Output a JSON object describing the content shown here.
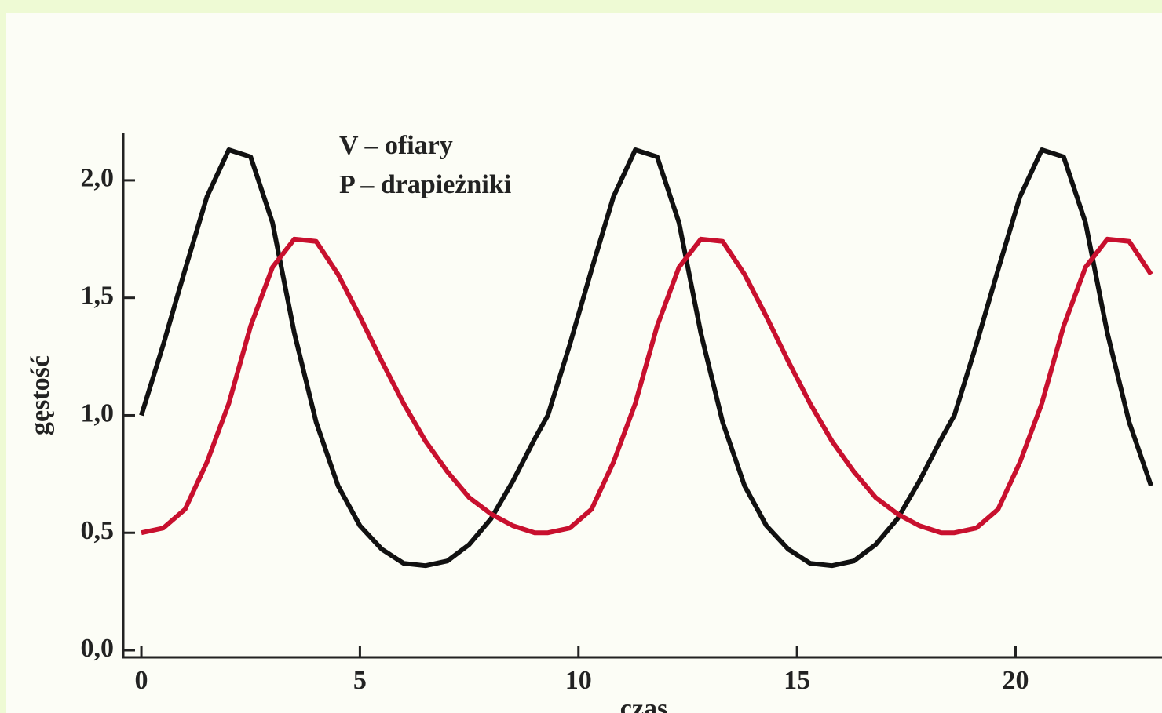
{
  "chart_data": {
    "type": "line",
    "xlabel": "czas",
    "ylabel": "gęstość",
    "x": [
      0,
      0.5,
      1,
      1.5,
      2,
      2.5,
      3,
      3.5,
      4,
      4.5,
      5,
      5.5,
      6,
      6.5,
      7,
      7.5,
      8,
      8.5,
      9,
      9.3,
      9.8,
      10.3,
      10.8,
      11.3,
      11.8,
      12.3,
      12.8,
      13.3,
      13.8,
      14.3,
      14.8,
      15.3,
      15.8,
      16.3,
      16.8,
      17.3,
      17.8,
      18.3,
      18.6,
      19.1,
      19.6,
      20.1,
      20.6,
      21.1,
      21.6,
      22.1,
      22.6,
      23.1
    ],
    "series": [
      {
        "name": "V – ofiary",
        "color": "#111111",
        "values": [
          1.0,
          1.3,
          1.62,
          1.93,
          2.13,
          2.1,
          1.82,
          1.35,
          0.97,
          0.7,
          0.53,
          0.43,
          0.37,
          0.36,
          0.38,
          0.45,
          0.56,
          0.72,
          0.9,
          1.0,
          1.3,
          1.62,
          1.93,
          2.13,
          2.1,
          1.82,
          1.35,
          0.97,
          0.7,
          0.53,
          0.43,
          0.37,
          0.36,
          0.38,
          0.45,
          0.56,
          0.72,
          0.9,
          1.0,
          1.3,
          1.62,
          1.93,
          2.13,
          2.1,
          1.82,
          1.35,
          0.97,
          0.7
        ]
      },
      {
        "name": "P – drapieżniki",
        "color": "#c8102e",
        "values": [
          0.5,
          0.52,
          0.6,
          0.8,
          1.05,
          1.38,
          1.63,
          1.75,
          1.74,
          1.6,
          1.42,
          1.23,
          1.05,
          0.89,
          0.76,
          0.65,
          0.58,
          0.53,
          0.5,
          0.5,
          0.52,
          0.6,
          0.8,
          1.05,
          1.38,
          1.63,
          1.75,
          1.74,
          1.6,
          1.42,
          1.23,
          1.05,
          0.89,
          0.76,
          0.65,
          0.58,
          0.53,
          0.5,
          0.5,
          0.52,
          0.6,
          0.8,
          1.05,
          1.38,
          1.63,
          1.75,
          1.74,
          1.6
        ]
      }
    ],
    "xlim": [
      -0.45,
      23.35
    ],
    "ylim": [
      -0.03,
      2.2
    ],
    "xticks": [
      0,
      5,
      10,
      15,
      20
    ],
    "yticks": [
      {
        "value": 0,
        "label": "0,0"
      },
      {
        "value": 0.5,
        "label": "0,5"
      },
      {
        "value": 1,
        "label": "1,0"
      },
      {
        "value": 1.5,
        "label": "1,5"
      },
      {
        "value": 2,
        "label": "2,0"
      }
    ],
    "grid": false
  }
}
